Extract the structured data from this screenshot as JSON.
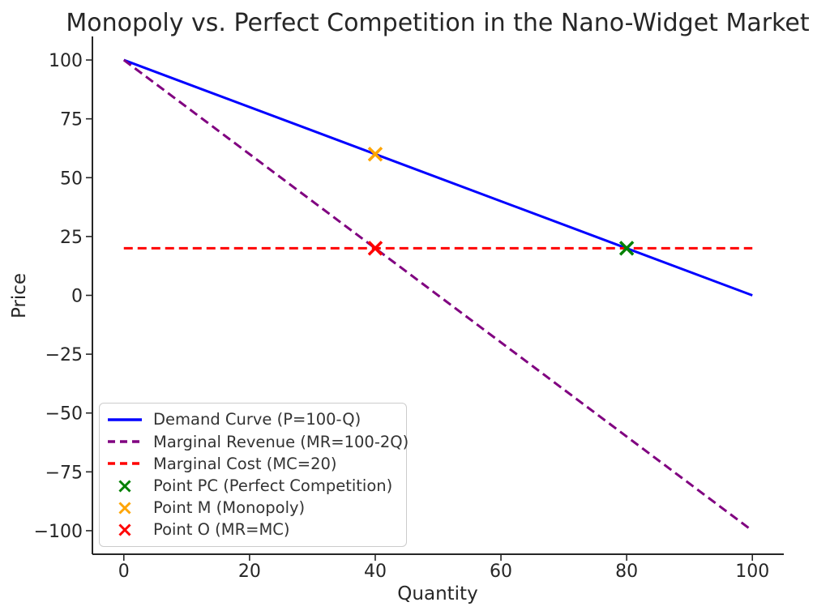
{
  "figure": {
    "background": "#ffffff",
    "text_color": "#262626",
    "axis_color": "#262626",
    "legend_border_color": "#cccccc"
  },
  "chart_data": {
    "type": "line",
    "title": "Monopoly vs. Perfect Competition in the Nano-Widget Market",
    "xlabel": "Quantity",
    "ylabel": "Price",
    "xlim": [
      -5,
      105
    ],
    "ylim": [
      -110,
      110
    ],
    "xticks": [
      0,
      20,
      40,
      60,
      80,
      100
    ],
    "yticks": [
      100,
      75,
      50,
      25,
      0,
      -25,
      -50,
      -75,
      -100
    ],
    "grid": false,
    "legend_position": "lower-left",
    "series": [
      {
        "name": "demand-curve",
        "label": "Demand Curve (P=100-Q)",
        "kind": "line",
        "linestyle": "solid",
        "color": "#0000ff",
        "x": [
          0,
          100
        ],
        "y": [
          100,
          0
        ]
      },
      {
        "name": "marginal-revenue",
        "label": "Marginal Revenue (MR=100-2Q)",
        "kind": "line",
        "linestyle": "dashed",
        "color": "#800080",
        "x": [
          0,
          100
        ],
        "y": [
          100,
          -100
        ]
      },
      {
        "name": "marginal-cost",
        "label": "Marginal Cost (MC=20)",
        "kind": "line",
        "linestyle": "dashed",
        "color": "#ff0000",
        "x": [
          0,
          100
        ],
        "y": [
          20,
          20
        ]
      },
      {
        "name": "point-pc",
        "label": "Point PC (Perfect Competition)",
        "kind": "marker",
        "marker": "x",
        "color": "#008000",
        "x": [
          80
        ],
        "y": [
          20
        ]
      },
      {
        "name": "point-m",
        "label": "Point M (Monopoly)",
        "kind": "marker",
        "marker": "x",
        "color": "#ffa500",
        "x": [
          40
        ],
        "y": [
          60
        ]
      },
      {
        "name": "point-o",
        "label": "Point O (MR=MC)",
        "kind": "marker",
        "marker": "x",
        "color": "#ff0000",
        "x": [
          40
        ],
        "y": [
          20
        ]
      }
    ]
  }
}
